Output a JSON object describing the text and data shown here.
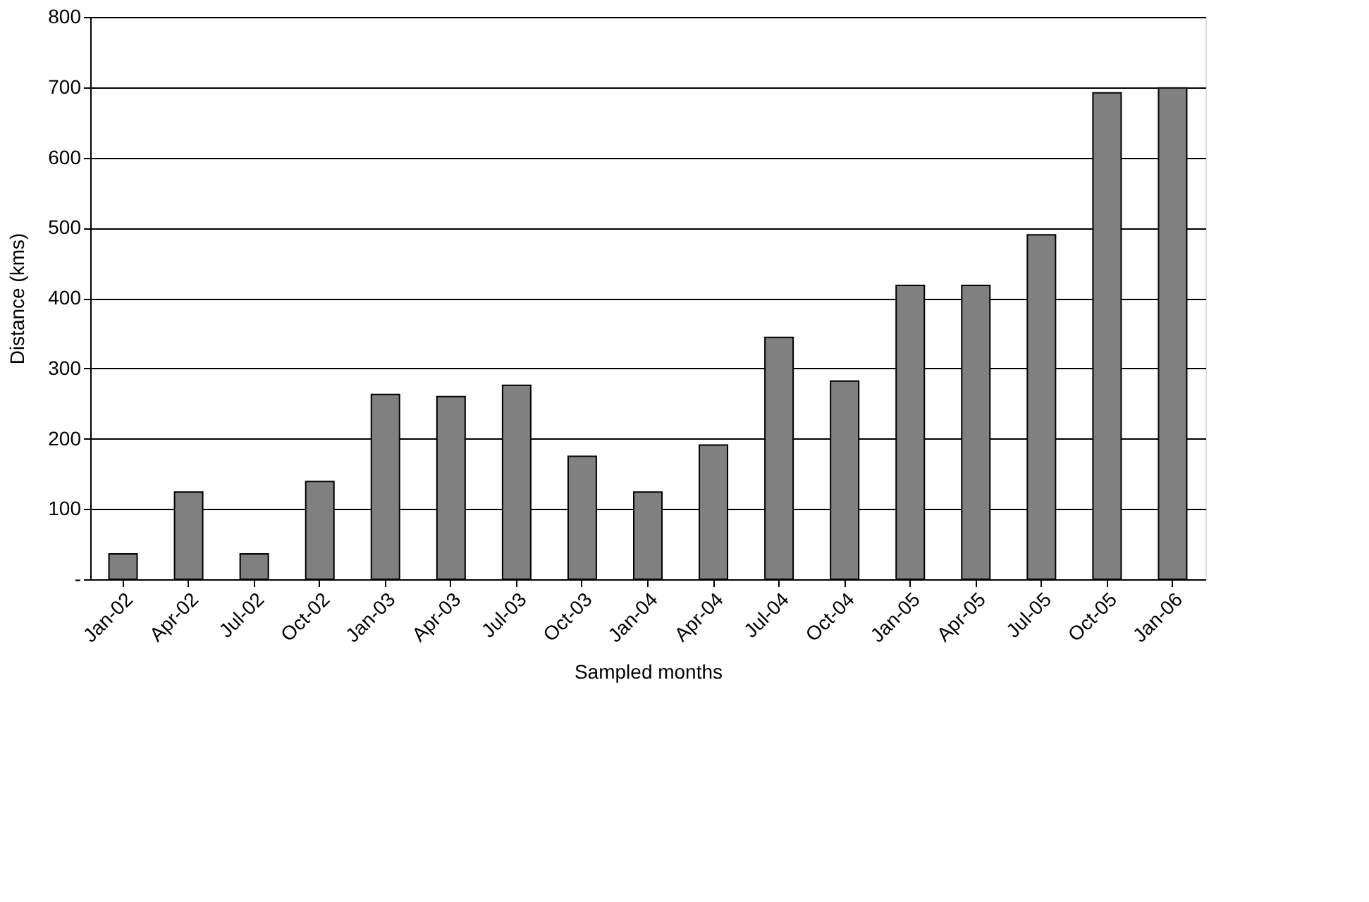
{
  "chart_data": {
    "type": "bar",
    "xlabel": "Sampled months",
    "ylabel": "Distance (kms)",
    "categories": [
      "Jan-02",
      "Apr-02",
      "Jul-02",
      "Oct-02",
      "Jan-03",
      "Apr-03",
      "Jul-03",
      "Oct-03",
      "Jan-04",
      "Apr-04",
      "Jul-04",
      "Oct-04",
      "Jan-05",
      "Apr-05",
      "Jul-05",
      "Oct-05",
      "Jan-06"
    ],
    "values": [
      36,
      124,
      36,
      139,
      263,
      260,
      276,
      175,
      124,
      191,
      344,
      282,
      418,
      418,
      490,
      692,
      699
    ],
    "color": "#808080",
    "ylim": [
      0,
      800
    ],
    "yticks": [
      {
        "value": 0,
        "label": "-"
      },
      100,
      200,
      300,
      400,
      500,
      600,
      700,
      800
    ],
    "grid": "y"
  }
}
